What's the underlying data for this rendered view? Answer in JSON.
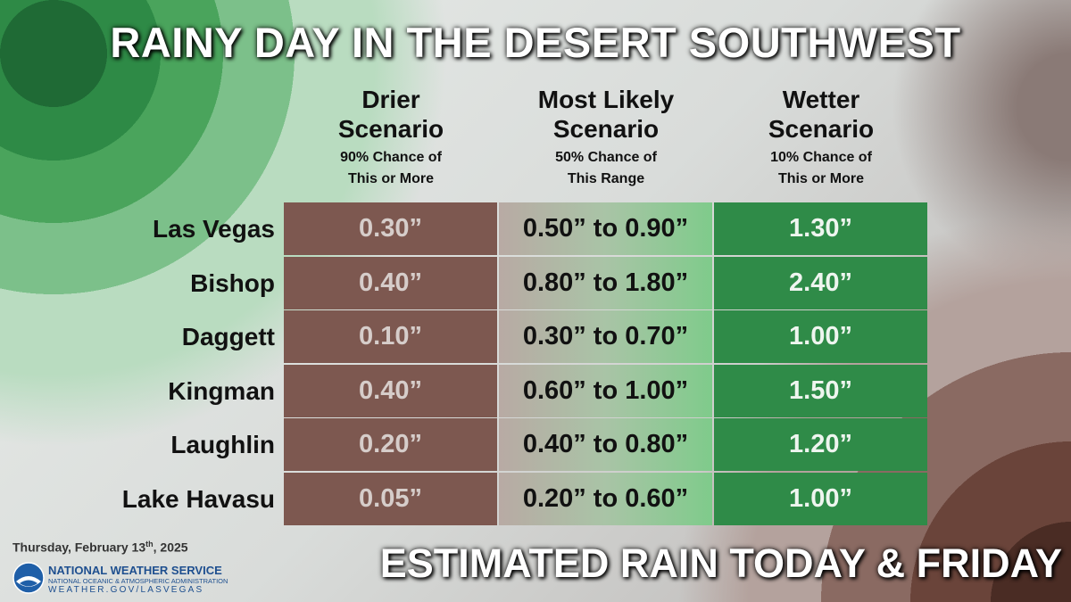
{
  "header": {
    "title": "RAINY DAY IN THE DESERT SOUTHWEST"
  },
  "table": {
    "columns": [
      {
        "heading": [
          "Drier",
          "Scenario"
        ],
        "subheading": [
          "90% Chance of",
          "This or More"
        ]
      },
      {
        "heading": [
          "Most Likely",
          "Scenario"
        ],
        "subheading": [
          "50% Chance of",
          "This Range"
        ]
      },
      {
        "heading": [
          "Wetter",
          "Scenario"
        ],
        "subheading": [
          "10% Chance of",
          "This or More"
        ]
      }
    ],
    "rows": [
      [
        "Las Vegas",
        "0.30”",
        "0.50” to 0.90”",
        "1.30”"
      ],
      [
        "Bishop",
        "0.40”",
        "0.80” to 1.80”",
        "2.40”"
      ],
      [
        "Daggett",
        "0.10”",
        "0.30” to 0.70”",
        "1.00”"
      ],
      [
        "Kingman",
        "0.40”",
        "0.60” to 1.00”",
        "1.50”"
      ],
      [
        "Laughlin",
        "0.20”",
        "0.40” to 0.80”",
        "1.20”"
      ],
      [
        "Lake Havasu",
        "0.05”",
        "0.20” to 0.60”",
        "1.00”"
      ]
    ]
  },
  "footer": {
    "date": {
      "main": "Thursday, February 13",
      "sup": "th",
      "end": ", 2025"
    },
    "agency": "NATIONAL WEATHER SERVICE",
    "parent": "NATIONAL OCEANIC & ATMOSPHERIC ADMINISTRATION",
    "url": "WEATHER.GOV/LASVEGAS",
    "subtitle": "ESTIMATED RAIN TODAY & FRIDAY"
  }
}
